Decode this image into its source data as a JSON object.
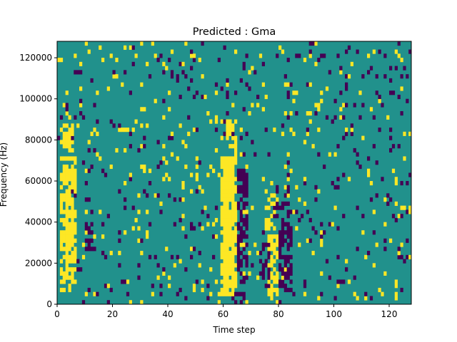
{
  "chart_data": {
    "type": "heatmap",
    "title": "Predicted : Gma",
    "xlabel": "Time step",
    "ylabel": "Frequency (Hz)",
    "xlim": [
      0,
      128
    ],
    "ylim": [
      0,
      128000
    ],
    "x_ticks": [
      0,
      20,
      40,
      60,
      80,
      100,
      120
    ],
    "y_ticks": [
      0,
      20000,
      40000,
      60000,
      80000,
      100000,
      120000
    ],
    "n_time_steps": 128,
    "n_frequency_bins": 64,
    "colors": {
      "low": "#440154",
      "mid": "#21918c",
      "high": "#fde725"
    },
    "background_value": "mid",
    "high_energy_bands": [
      {
        "t_start": 1,
        "t_end": 5,
        "f_start": 6000,
        "f_end": 88000,
        "density": 0.55
      },
      {
        "t_start": 3,
        "t_end": 6,
        "f_start": 16000,
        "f_end": 72000,
        "density": 0.6
      },
      {
        "t_start": 59,
        "t_end": 63,
        "f_start": 4000,
        "f_end": 72000,
        "density": 0.85
      },
      {
        "t_start": 61,
        "t_end": 64,
        "f_start": 8000,
        "f_end": 90000,
        "density": 0.45
      },
      {
        "t_start": 76,
        "t_end": 79,
        "f_start": 4000,
        "f_end": 34000,
        "density": 0.7
      },
      {
        "t_start": 75,
        "t_end": 78,
        "f_start": 36000,
        "f_end": 60000,
        "density": 0.35
      }
    ],
    "low_energy_bands": [
      {
        "t_start": 10,
        "t_end": 12,
        "f_start": 26000,
        "f_end": 40000,
        "density": 0.75
      },
      {
        "t_start": 65,
        "t_end": 68,
        "f_start": 4000,
        "f_end": 66000,
        "density": 0.6
      },
      {
        "t_start": 73,
        "t_end": 76,
        "f_start": 8000,
        "f_end": 30000,
        "density": 0.45
      },
      {
        "t_start": 80,
        "t_end": 84,
        "f_start": 6000,
        "f_end": 40000,
        "density": 0.65
      },
      {
        "t_start": 78,
        "t_end": 83,
        "f_start": 40000,
        "f_end": 58000,
        "density": 0.3
      }
    ],
    "scatter_density": {
      "high": 0.045,
      "low": 0.045
    }
  }
}
